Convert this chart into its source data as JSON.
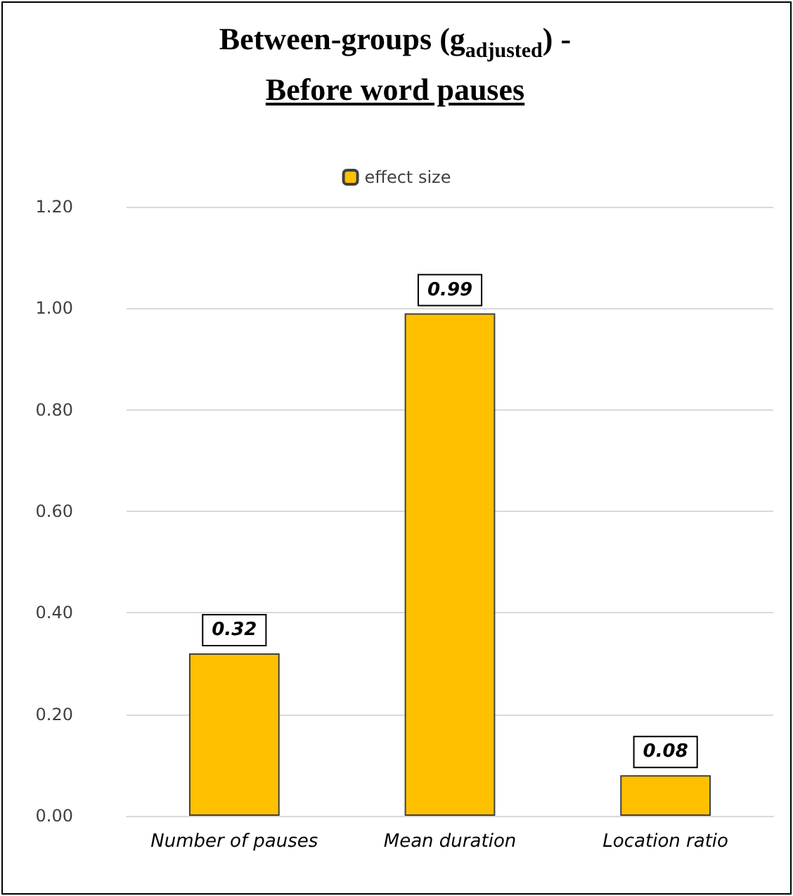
{
  "chart_data": {
    "type": "bar",
    "title": "Between-groups (g$_{adjusted}$) -\nBefore word pauses",
    "categories": [
      "Number of pauses",
      "Mean duration",
      "Location ratio"
    ],
    "series": [
      {
        "name": "effect size",
        "color": "#ffc000",
        "values": [
          0.32,
          0.99,
          0.08
        ]
      }
    ],
    "ylim": [
      0,
      1.2
    ],
    "yticks": [
      {
        "value": 0,
        "label": "0.00"
      },
      {
        "value": 0.2,
        "label": "0.20"
      },
      {
        "value": 0.4,
        "label": "0.40"
      },
      {
        "value": 0.6,
        "label": "0.60"
      },
      {
        "value": 0.8,
        "label": "0.80"
      },
      {
        "value": 1,
        "label": "1.00"
      },
      {
        "value": 1.2,
        "label": "1.20"
      }
    ],
    "grid": "y",
    "legend": "top",
    "data_labels": true
  }
}
